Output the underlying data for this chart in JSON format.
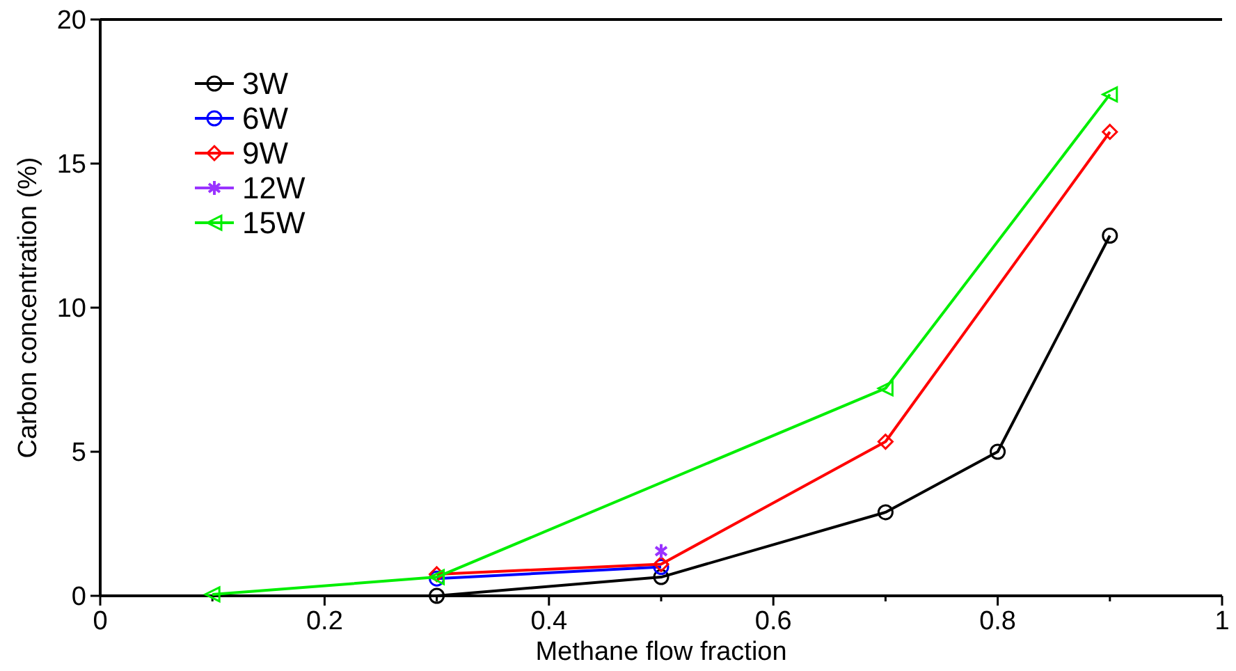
{
  "chart_data": {
    "type": "line",
    "xlabel": "Methane flow fraction",
    "ylabel": "Carbon concentration (%)",
    "xlim": [
      0,
      1
    ],
    "ylim": [
      0,
      20
    ],
    "xticks": [
      0,
      {
        "value": 0.1,
        "label": null
      },
      0.2,
      {
        "value": 0.3,
        "label": null
      },
      0.4,
      {
        "value": 0.5,
        "label": null
      },
      0.6,
      {
        "value": 0.7,
        "label": null
      },
      0.8,
      {
        "value": 0.9,
        "label": null
      },
      1
    ],
    "yticks": [
      0,
      5,
      10,
      15,
      20
    ],
    "grid": false,
    "legend": "top left",
    "line_style": "solid",
    "series": [
      {
        "name": "3W",
        "color": "#000000",
        "marker": "circle",
        "x": [
          0.3,
          0.5,
          0.7,
          0.8,
          0.9
        ],
        "values": [
          0,
          0.65,
          2.9,
          5.0,
          12.5
        ]
      },
      {
        "name": "6W",
        "color": "#0000ff",
        "marker": "circle",
        "x": [
          0.3,
          0.5
        ],
        "values": [
          0.6,
          1.0
        ]
      },
      {
        "name": "9W",
        "color": "#ff0000",
        "marker": "diamond",
        "x": [
          0.3,
          0.5,
          0.7,
          0.9
        ],
        "values": [
          0.75,
          1.1,
          5.35,
          16.1
        ]
      },
      {
        "name": "12W",
        "color": "#9933ff",
        "marker": "cross",
        "x": [
          0.5
        ],
        "values": [
          1.55
        ]
      },
      {
        "name": "15W",
        "color": "#00ee00",
        "marker": "triangle",
        "x": [
          0.1,
          0.3,
          0.7,
          0.9
        ],
        "values": [
          0.05,
          0.65,
          7.2,
          17.4
        ]
      }
    ]
  }
}
